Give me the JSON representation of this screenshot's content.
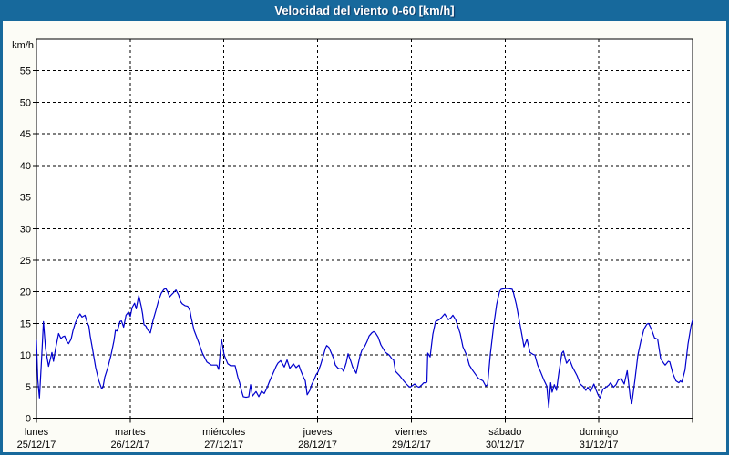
{
  "window": {
    "title": "Velocidad del viento 0-60 [km/h]"
  },
  "colors": {
    "frame": "#17699C",
    "titlebar_bg": "#17699C",
    "titlebar_text": "#FFFFFF",
    "content_bg": "#FCFCF6",
    "plot_bg": "#FFFFFF",
    "grid_color": "#000000",
    "axis_color": "#000000",
    "line_color": "#0000CD"
  },
  "chart_data": {
    "type": "line",
    "title": "Velocidad del viento 0-60 [km/h]",
    "ylabel": "km/h",
    "xlabel": "",
    "ylim": [
      0,
      60
    ],
    "yticks": [
      0,
      5,
      10,
      15,
      20,
      25,
      30,
      35,
      40,
      45,
      50,
      55
    ],
    "grid": true,
    "legend_position": "none",
    "x_axis": {
      "unit": "days",
      "range_days": 7,
      "day_labels": [
        {
          "name": "lunes",
          "date": "25/12/17"
        },
        {
          "name": "martes",
          "date": "26/12/17"
        },
        {
          "name": "miércoles",
          "date": "27/12/17"
        },
        {
          "name": "jueves",
          "date": "28/12/17"
        },
        {
          "name": "viernes",
          "date": "29/12/17"
        },
        {
          "name": "sábado",
          "date": "30/12/17"
        },
        {
          "name": "domingo",
          "date": "31/12/17"
        }
      ]
    },
    "series": [
      {
        "name": "Velocidad del viento",
        "units": "km/h",
        "points": [
          [
            0,
            12.3
          ],
          [
            0.015,
            6
          ],
          [
            0.032,
            3.2
          ],
          [
            0.053,
            9
          ],
          [
            0.075,
            15.3
          ],
          [
            0.097,
            11
          ],
          [
            0.129,
            8.2
          ],
          [
            0.151,
            9.5
          ],
          [
            0.165,
            10.4
          ],
          [
            0.182,
            9
          ],
          [
            0.204,
            11
          ],
          [
            0.236,
            13.4
          ],
          [
            0.262,
            12.6
          ],
          [
            0.282,
            12.9
          ],
          [
            0.301,
            13
          ],
          [
            0.321,
            12.2
          ],
          [
            0.343,
            11.8
          ],
          [
            0.369,
            12.5
          ],
          [
            0.389,
            13.8
          ],
          [
            0.415,
            15.1
          ],
          [
            0.437,
            15.8
          ],
          [
            0.464,
            16.5
          ],
          [
            0.486,
            16
          ],
          [
            0.518,
            16.3
          ],
          [
            0.544,
            15
          ],
          [
            0.559,
            14.6
          ],
          [
            0.574,
            13
          ],
          [
            0.6,
            10.8
          ],
          [
            0.632,
            8
          ],
          [
            0.664,
            6
          ],
          [
            0.695,
            4.7
          ],
          [
            0.71,
            4.9
          ],
          [
            0.729,
            6.5
          ],
          [
            0.761,
            8
          ],
          [
            0.794,
            9.9
          ],
          [
            0.826,
            12.2
          ],
          [
            0.843,
            13.9
          ],
          [
            0.86,
            13.8
          ],
          [
            0.875,
            14.4
          ],
          [
            0.891,
            15.3
          ],
          [
            0.907,
            15.4
          ],
          [
            0.93,
            14.4
          ],
          [
            0.956,
            16.3
          ],
          [
            0.982,
            16.8
          ],
          [
            1.001,
            16.1
          ],
          [
            1.021,
            17.5
          ],
          [
            1.047,
            18.2
          ],
          [
            1.065,
            17.3
          ],
          [
            1.092,
            19.4
          ],
          [
            1.118,
            17.7
          ],
          [
            1.133,
            16.5
          ],
          [
            1.147,
            14.8
          ],
          [
            1.167,
            14.6
          ],
          [
            1.186,
            14
          ],
          [
            1.215,
            13.5
          ],
          [
            1.244,
            15.5
          ],
          [
            1.274,
            17
          ],
          [
            1.303,
            18.6
          ],
          [
            1.332,
            19.8
          ],
          [
            1.361,
            20.4
          ],
          [
            1.381,
            20.5
          ],
          [
            1.4,
            20
          ],
          [
            1.42,
            19.2
          ],
          [
            1.439,
            19.5
          ],
          [
            1.458,
            19.8
          ],
          [
            1.488,
            20.3
          ],
          [
            1.517,
            19.5
          ],
          [
            1.536,
            18.5
          ],
          [
            1.556,
            18.1
          ],
          [
            1.585,
            17.8
          ],
          [
            1.614,
            17.7
          ],
          [
            1.638,
            17
          ],
          [
            1.653,
            15.8
          ],
          [
            1.682,
            13.9
          ],
          [
            1.731,
            12
          ],
          [
            1.77,
            10.3
          ],
          [
            1.818,
            8.9
          ],
          [
            1.867,
            8.4
          ],
          [
            1.925,
            8.4
          ],
          [
            1.944,
            7.7
          ],
          [
            1.974,
            12.5
          ],
          [
            2.003,
            10
          ],
          [
            2.042,
            8.6
          ],
          [
            2.071,
            8.3
          ],
          [
            2.119,
            8.3
          ],
          [
            2.149,
            6.5
          ],
          [
            2.168,
            5.6
          ],
          [
            2.188,
            4.3
          ],
          [
            2.207,
            3.4
          ],
          [
            2.236,
            3.3
          ],
          [
            2.265,
            3.4
          ],
          [
            2.285,
            5.3
          ],
          [
            2.304,
            3.5
          ],
          [
            2.343,
            4.2
          ],
          [
            2.372,
            3.4
          ],
          [
            2.401,
            4.3
          ],
          [
            2.431,
            3.9
          ],
          [
            2.46,
            4.8
          ],
          [
            2.489,
            5.9
          ],
          [
            2.528,
            7.2
          ],
          [
            2.557,
            8.2
          ],
          [
            2.576,
            8.7
          ],
          [
            2.606,
            9.1
          ],
          [
            2.644,
            8.1
          ],
          [
            2.674,
            9.2
          ],
          [
            2.703,
            7.9
          ],
          [
            2.742,
            8.6
          ],
          [
            2.771,
            8
          ],
          [
            2.8,
            8.4
          ],
          [
            2.82,
            7.5
          ],
          [
            2.849,
            6.5
          ],
          [
            2.868,
            5.9
          ],
          [
            2.888,
            3.7
          ],
          [
            2.917,
            4.4
          ],
          [
            2.936,
            5.3
          ],
          [
            2.965,
            6.2
          ],
          [
            2.985,
            6.9
          ],
          [
            3.004,
            7.3
          ],
          [
            3.033,
            8.5
          ],
          [
            3.063,
            10
          ],
          [
            3.082,
            11
          ],
          [
            3.097,
            11.5
          ],
          [
            3.121,
            11.2
          ],
          [
            3.14,
            10.5
          ],
          [
            3.169,
            9.5
          ],
          [
            3.189,
            8.4
          ],
          [
            3.218,
            7.9
          ],
          [
            3.238,
            7.8
          ],
          [
            3.257,
            7.9
          ],
          [
            3.276,
            7.4
          ],
          [
            3.306,
            8.8
          ],
          [
            3.325,
            10.2
          ],
          [
            3.354,
            9
          ],
          [
            3.374,
            8.1
          ],
          [
            3.393,
            7.6
          ],
          [
            3.412,
            7.1
          ],
          [
            3.432,
            8.5
          ],
          [
            3.451,
            9.8
          ],
          [
            3.471,
            10.7
          ],
          [
            3.5,
            11.3
          ],
          [
            3.529,
            12.2
          ],
          [
            3.549,
            13
          ],
          [
            3.578,
            13.5
          ],
          [
            3.597,
            13.7
          ],
          [
            3.617,
            13.5
          ],
          [
            3.646,
            12.8
          ],
          [
            3.675,
            11.6
          ],
          [
            3.724,
            10.4
          ],
          [
            3.763,
            10
          ],
          [
            3.792,
            9.4
          ],
          [
            3.811,
            9.2
          ],
          [
            3.831,
            7.4
          ],
          [
            3.87,
            6.8
          ],
          [
            3.918,
            5.9
          ],
          [
            3.947,
            5.4
          ],
          [
            3.967,
            5.1
          ],
          [
            3.986,
            4.9
          ],
          [
            4.006,
            5.1
          ],
          [
            4.035,
            5.4
          ],
          [
            4.064,
            5
          ],
          [
            4.083,
            4.9
          ],
          [
            4.113,
            5.3
          ],
          [
            4.132,
            5.6
          ],
          [
            4.151,
            5.6
          ],
          [
            4.166,
            5.7
          ],
          [
            4.175,
            10.3
          ],
          [
            4.2,
            9.7
          ],
          [
            4.229,
            13.3
          ],
          [
            4.258,
            15.3
          ],
          [
            4.297,
            15.6
          ],
          [
            4.326,
            16
          ],
          [
            4.355,
            16.5
          ],
          [
            4.394,
            15.6
          ],
          [
            4.423,
            15.9
          ],
          [
            4.443,
            16.3
          ],
          [
            4.472,
            15.6
          ],
          [
            4.521,
            13.4
          ],
          [
            4.55,
            11.3
          ],
          [
            4.589,
            10
          ],
          [
            4.618,
            8.4
          ],
          [
            4.647,
            7.7
          ],
          [
            4.667,
            7.3
          ],
          [
            4.715,
            6.3
          ],
          [
            4.764,
            5.9
          ],
          [
            4.793,
            5.1
          ],
          [
            4.813,
            5.3
          ],
          [
            4.842,
            10
          ],
          [
            4.878,
            14.6
          ],
          [
            4.91,
            18
          ],
          [
            4.942,
            20.1
          ],
          [
            4.958,
            20.4
          ],
          [
            5,
            20.5
          ],
          [
            5.036,
            20.5
          ],
          [
            5.075,
            20.4
          ],
          [
            5.087,
            20
          ],
          [
            5.12,
            18
          ],
          [
            5.152,
            15.4
          ],
          [
            5.184,
            12.8
          ],
          [
            5.201,
            11.3
          ],
          [
            5.233,
            12.5
          ],
          [
            5.266,
            10.4
          ],
          [
            5.298,
            10.1
          ],
          [
            5.317,
            10
          ],
          [
            5.347,
            8.4
          ],
          [
            5.379,
            7.3
          ],
          [
            5.412,
            6.1
          ],
          [
            5.444,
            5.1
          ],
          [
            5.466,
            1.7
          ],
          [
            5.486,
            5.6
          ],
          [
            5.502,
            4.1
          ],
          [
            5.525,
            5.3
          ],
          [
            5.548,
            4.4
          ],
          [
            5.573,
            7.1
          ],
          [
            5.606,
            10.3
          ],
          [
            5.622,
            10.6
          ],
          [
            5.655,
            8.7
          ],
          [
            5.687,
            9.3
          ],
          [
            5.719,
            8.1
          ],
          [
            5.768,
            6.7
          ],
          [
            5.801,
            5.4
          ],
          [
            5.833,
            5
          ],
          [
            5.862,
            4.4
          ],
          [
            5.882,
            4.9
          ],
          [
            5.911,
            4.2
          ],
          [
            5.947,
            5.4
          ],
          [
            5.969,
            4.5
          ],
          [
            5.995,
            3.6
          ],
          [
            6.011,
            3.2
          ],
          [
            6.044,
            4.6
          ],
          [
            6.076,
            4.9
          ],
          [
            6.105,
            5.2
          ],
          [
            6.125,
            5.6
          ],
          [
            6.157,
            4.9
          ],
          [
            6.183,
            5.3
          ],
          [
            6.206,
            6
          ],
          [
            6.239,
            6.3
          ],
          [
            6.271,
            5.4
          ],
          [
            6.303,
            7.5
          ],
          [
            6.336,
            3.2
          ],
          [
            6.352,
            2.3
          ],
          [
            6.385,
            6
          ],
          [
            6.417,
            10
          ],
          [
            6.449,
            12.2
          ],
          [
            6.482,
            14.1
          ],
          [
            6.514,
            14.9
          ],
          [
            6.531,
            15
          ],
          [
            6.563,
            14
          ],
          [
            6.595,
            12.7
          ],
          [
            6.628,
            12.5
          ],
          [
            6.66,
            9.4
          ],
          [
            6.692,
            8.7
          ],
          [
            6.708,
            8.4
          ],
          [
            6.741,
            9
          ],
          [
            6.757,
            8.9
          ],
          [
            6.789,
            7.1
          ],
          [
            6.822,
            5.9
          ],
          [
            6.854,
            5.6
          ],
          [
            6.871,
            5.9
          ],
          [
            6.886,
            5.7
          ],
          [
            6.919,
            7.6
          ],
          [
            6.951,
            11.7
          ],
          [
            6.983,
            14.6
          ],
          [
            7,
            15.5
          ]
        ]
      }
    ]
  }
}
